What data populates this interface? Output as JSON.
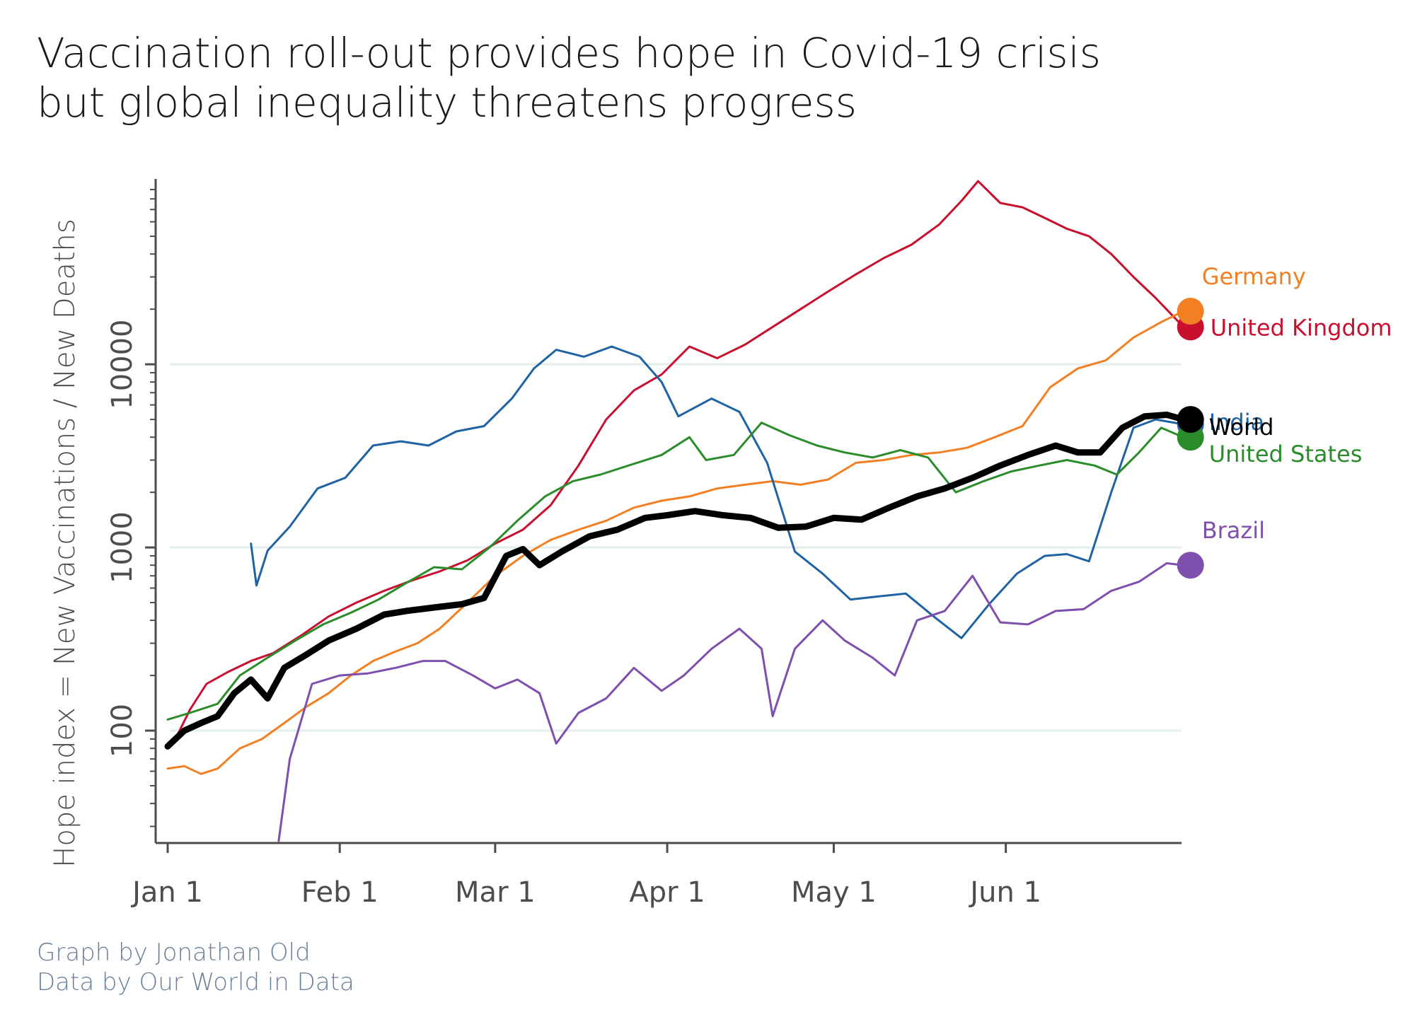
{
  "chart_data": {
    "type": "line",
    "title": [
      "Vaccination roll-out provides hope in Covid-19 crisis",
      "but global inequality threatens progress"
    ],
    "ylabel": "Hope index = New Vaccinations / New Deaths",
    "xlabel": "",
    "yscale": "log",
    "ylim": [
      25,
      90000
    ],
    "xlim": [
      "2021-01-01",
      "2021-07-01"
    ],
    "x_ticks": [
      {
        "date": "2021-01-01",
        "label": "Jan 1"
      },
      {
        "date": "2021-02-01",
        "label": "Feb 1"
      },
      {
        "date": "2021-03-01",
        "label": "Mar 1"
      },
      {
        "date": "2021-04-01",
        "label": "Apr 1"
      },
      {
        "date": "2021-05-01",
        "label": "May 1"
      },
      {
        "date": "2021-06-01",
        "label": "Jun 1"
      }
    ],
    "y_ticks": [
      {
        "value": 100,
        "label": "100"
      },
      {
        "value": 1000,
        "label": "1000"
      },
      {
        "value": 10000,
        "label": "10000"
      }
    ],
    "grid": "horizontal major lines",
    "legend": "direct labels at line ends",
    "series": [
      {
        "name": "United Kingdom",
        "color": "#c8102e",
        "end_marker": true,
        "points": [
          [
            "2021-01-02",
            85
          ],
          [
            "2021-01-05",
            130
          ],
          [
            "2021-01-08",
            180
          ],
          [
            "2021-01-12",
            210
          ],
          [
            "2021-01-16",
            240
          ],
          [
            "2021-01-20",
            265
          ],
          [
            "2021-01-25",
            330
          ],
          [
            "2021-01-30",
            420
          ],
          [
            "2021-02-04",
            500
          ],
          [
            "2021-02-09",
            580
          ],
          [
            "2021-02-14",
            660
          ],
          [
            "2021-02-19",
            740
          ],
          [
            "2021-02-24",
            850
          ],
          [
            "2021-03-01",
            1050
          ],
          [
            "2021-03-06",
            1250
          ],
          [
            "2021-03-11",
            1700
          ],
          [
            "2021-03-16",
            2800
          ],
          [
            "2021-03-21",
            5000
          ],
          [
            "2021-03-26",
            7200
          ],
          [
            "2021-03-31",
            8800
          ],
          [
            "2021-04-05",
            12500
          ],
          [
            "2021-04-10",
            10800
          ],
          [
            "2021-04-15",
            12800
          ],
          [
            "2021-04-20",
            16000
          ],
          [
            "2021-04-25",
            20000
          ],
          [
            "2021-04-30",
            25000
          ],
          [
            "2021-05-05",
            31000
          ],
          [
            "2021-05-10",
            38000
          ],
          [
            "2021-05-15",
            45000
          ],
          [
            "2021-05-20",
            58000
          ],
          [
            "2021-05-24",
            78000
          ],
          [
            "2021-05-27",
            100000
          ],
          [
            "2021-05-31",
            76000
          ],
          [
            "2021-06-04",
            72000
          ],
          [
            "2021-06-08",
            63000
          ],
          [
            "2021-06-12",
            55000
          ],
          [
            "2021-06-16",
            50000
          ],
          [
            "2021-06-20",
            40000
          ],
          [
            "2021-06-24",
            30000
          ],
          [
            "2021-06-28",
            23000
          ],
          [
            "2021-07-01",
            18500
          ],
          [
            "2021-07-03",
            16000
          ]
        ]
      },
      {
        "name": "Germany",
        "color": "#f28022",
        "end_marker": true,
        "points": [
          [
            "2021-01-01",
            62
          ],
          [
            "2021-01-04",
            64
          ],
          [
            "2021-01-07",
            58
          ],
          [
            "2021-01-10",
            62
          ],
          [
            "2021-01-14",
            80
          ],
          [
            "2021-01-18",
            90
          ],
          [
            "2021-01-22",
            110
          ],
          [
            "2021-01-26",
            135
          ],
          [
            "2021-01-30",
            160
          ],
          [
            "2021-02-03",
            200
          ],
          [
            "2021-02-07",
            240
          ],
          [
            "2021-02-11",
            270
          ],
          [
            "2021-02-15",
            300
          ],
          [
            "2021-02-19",
            360
          ],
          [
            "2021-02-24",
            500
          ],
          [
            "2021-03-01",
            700
          ],
          [
            "2021-03-06",
            900
          ],
          [
            "2021-03-11",
            1100
          ],
          [
            "2021-03-16",
            1250
          ],
          [
            "2021-03-21",
            1400
          ],
          [
            "2021-03-26",
            1650
          ],
          [
            "2021-03-31",
            1800
          ],
          [
            "2021-04-05",
            1900
          ],
          [
            "2021-04-10",
            2100
          ],
          [
            "2021-04-15",
            2200
          ],
          [
            "2021-04-20",
            2300
          ],
          [
            "2021-04-25",
            2200
          ],
          [
            "2021-04-30",
            2350
          ],
          [
            "2021-05-05",
            2900
          ],
          [
            "2021-05-10",
            3000
          ],
          [
            "2021-05-15",
            3200
          ],
          [
            "2021-05-20",
            3300
          ],
          [
            "2021-05-25",
            3500
          ],
          [
            "2021-05-30",
            4000
          ],
          [
            "2021-06-04",
            4600
          ],
          [
            "2021-06-09",
            7500
          ],
          [
            "2021-06-14",
            9500
          ],
          [
            "2021-06-19",
            10500
          ],
          [
            "2021-06-24",
            14000
          ],
          [
            "2021-06-29",
            17000
          ],
          [
            "2021-07-03",
            19500
          ]
        ]
      },
      {
        "name": "India",
        "color": "#1f63a3",
        "end_marker": true,
        "points": [
          [
            "2021-01-16",
            1050
          ],
          [
            "2021-01-17",
            620
          ],
          [
            "2021-01-19",
            960
          ],
          [
            "2021-01-23",
            1300
          ],
          [
            "2021-01-28",
            2100
          ],
          [
            "2021-02-02",
            2400
          ],
          [
            "2021-02-07",
            3600
          ],
          [
            "2021-02-12",
            3800
          ],
          [
            "2021-02-17",
            3600
          ],
          [
            "2021-02-22",
            4300
          ],
          [
            "2021-02-27",
            4600
          ],
          [
            "2021-03-04",
            6500
          ],
          [
            "2021-03-08",
            9500
          ],
          [
            "2021-03-12",
            12000
          ],
          [
            "2021-03-17",
            11000
          ],
          [
            "2021-03-22",
            12500
          ],
          [
            "2021-03-27",
            11000
          ],
          [
            "2021-03-31",
            8000
          ],
          [
            "2021-04-03",
            5200
          ],
          [
            "2021-04-09",
            6500
          ],
          [
            "2021-04-14",
            5500
          ],
          [
            "2021-04-19",
            2900
          ],
          [
            "2021-04-24",
            950
          ],
          [
            "2021-04-29",
            720
          ],
          [
            "2021-05-04",
            520
          ],
          [
            "2021-05-09",
            540
          ],
          [
            "2021-05-14",
            560
          ],
          [
            "2021-05-19",
            420
          ],
          [
            "2021-05-24",
            320
          ],
          [
            "2021-05-29",
            490
          ],
          [
            "2021-06-03",
            720
          ],
          [
            "2021-06-08",
            900
          ],
          [
            "2021-06-12",
            920
          ],
          [
            "2021-06-16",
            840
          ],
          [
            "2021-06-20",
            2000
          ],
          [
            "2021-06-24",
            4500
          ],
          [
            "2021-06-28",
            5000
          ],
          [
            "2021-07-03",
            4700
          ]
        ]
      },
      {
        "name": "United States",
        "color": "#2b8c2b",
        "end_marker": true,
        "points": [
          [
            "2021-01-01",
            115
          ],
          [
            "2021-01-05",
            125
          ],
          [
            "2021-01-10",
            140
          ],
          [
            "2021-01-14",
            200
          ],
          [
            "2021-01-19",
            250
          ],
          [
            "2021-01-24",
            310
          ],
          [
            "2021-01-29",
            380
          ],
          [
            "2021-02-03",
            440
          ],
          [
            "2021-02-08",
            520
          ],
          [
            "2021-02-13",
            640
          ],
          [
            "2021-02-18",
            780
          ],
          [
            "2021-02-23",
            760
          ],
          [
            "2021-02-28",
            1000
          ],
          [
            "2021-03-05",
            1400
          ],
          [
            "2021-03-10",
            1900
          ],
          [
            "2021-03-15",
            2300
          ],
          [
            "2021-03-20",
            2500
          ],
          [
            "2021-03-25",
            2800
          ],
          [
            "2021-03-31",
            3200
          ],
          [
            "2021-04-05",
            4000
          ],
          [
            "2021-04-08",
            3000
          ],
          [
            "2021-04-13",
            3200
          ],
          [
            "2021-04-18",
            4800
          ],
          [
            "2021-04-23",
            4100
          ],
          [
            "2021-04-28",
            3600
          ],
          [
            "2021-05-03",
            3300
          ],
          [
            "2021-05-08",
            3100
          ],
          [
            "2021-05-13",
            3400
          ],
          [
            "2021-05-18",
            3100
          ],
          [
            "2021-05-23",
            2000
          ],
          [
            "2021-05-28",
            2300
          ],
          [
            "2021-06-02",
            2600
          ],
          [
            "2021-06-07",
            2800
          ],
          [
            "2021-06-12",
            3000
          ],
          [
            "2021-06-17",
            2800
          ],
          [
            "2021-06-21",
            2500
          ],
          [
            "2021-06-25",
            3300
          ],
          [
            "2021-06-29",
            4500
          ],
          [
            "2021-07-03",
            4000
          ]
        ]
      },
      {
        "name": "Brazil",
        "color": "#7f4fad",
        "end_marker": true,
        "points": [
          [
            "2021-01-21",
            25
          ],
          [
            "2021-01-23",
            70
          ],
          [
            "2021-01-27",
            180
          ],
          [
            "2021-02-01",
            200
          ],
          [
            "2021-02-06",
            205
          ],
          [
            "2021-02-11",
            220
          ],
          [
            "2021-02-16",
            240
          ],
          [
            "2021-02-20",
            240
          ],
          [
            "2021-02-25",
            200
          ],
          [
            "2021-03-01",
            170
          ],
          [
            "2021-03-05",
            190
          ],
          [
            "2021-03-09",
            160
          ],
          [
            "2021-03-12",
            85
          ],
          [
            "2021-03-16",
            125
          ],
          [
            "2021-03-21",
            150
          ],
          [
            "2021-03-26",
            220
          ],
          [
            "2021-03-31",
            165
          ],
          [
            "2021-04-04",
            200
          ],
          [
            "2021-04-09",
            280
          ],
          [
            "2021-04-14",
            360
          ],
          [
            "2021-04-18",
            280
          ],
          [
            "2021-04-20",
            120
          ],
          [
            "2021-04-24",
            280
          ],
          [
            "2021-04-29",
            400
          ],
          [
            "2021-05-03",
            310
          ],
          [
            "2021-05-08",
            250
          ],
          [
            "2021-05-12",
            200
          ],
          [
            "2021-05-16",
            400
          ],
          [
            "2021-05-21",
            450
          ],
          [
            "2021-05-26",
            700
          ],
          [
            "2021-05-31",
            390
          ],
          [
            "2021-06-05",
            380
          ],
          [
            "2021-06-10",
            450
          ],
          [
            "2021-06-15",
            460
          ],
          [
            "2021-06-20",
            580
          ],
          [
            "2021-06-25",
            650
          ],
          [
            "2021-06-30",
            820
          ],
          [
            "2021-07-03",
            800
          ]
        ]
      },
      {
        "name": "World",
        "color": "#000000",
        "end_marker": true,
        "bold": true,
        "points": [
          [
            "2021-01-01",
            82
          ],
          [
            "2021-01-04",
            100
          ],
          [
            "2021-01-07",
            110
          ],
          [
            "2021-01-10",
            120
          ],
          [
            "2021-01-13",
            160
          ],
          [
            "2021-01-16",
            190
          ],
          [
            "2021-01-19",
            150
          ],
          [
            "2021-01-22",
            220
          ],
          [
            "2021-01-26",
            260
          ],
          [
            "2021-01-30",
            310
          ],
          [
            "2021-02-04",
            360
          ],
          [
            "2021-02-09",
            430
          ],
          [
            "2021-02-13",
            450
          ],
          [
            "2021-02-18",
            470
          ],
          [
            "2021-02-23",
            490
          ],
          [
            "2021-02-27",
            530
          ],
          [
            "2021-03-03",
            900
          ],
          [
            "2021-03-06",
            980
          ],
          [
            "2021-03-09",
            800
          ],
          [
            "2021-03-13",
            950
          ],
          [
            "2021-03-18",
            1150
          ],
          [
            "2021-03-23",
            1250
          ],
          [
            "2021-03-28",
            1450
          ],
          [
            "2021-04-01",
            1500
          ],
          [
            "2021-04-06",
            1580
          ],
          [
            "2021-04-11",
            1500
          ],
          [
            "2021-04-16",
            1450
          ],
          [
            "2021-04-21",
            1280
          ],
          [
            "2021-04-26",
            1300
          ],
          [
            "2021-05-01",
            1450
          ],
          [
            "2021-05-06",
            1420
          ],
          [
            "2021-05-11",
            1650
          ],
          [
            "2021-05-16",
            1900
          ],
          [
            "2021-05-21",
            2100
          ],
          [
            "2021-05-26",
            2400
          ],
          [
            "2021-05-31",
            2800
          ],
          [
            "2021-06-05",
            3200
          ],
          [
            "2021-06-10",
            3600
          ],
          [
            "2021-06-14",
            3300
          ],
          [
            "2021-06-18",
            3300
          ],
          [
            "2021-06-22",
            4500
          ],
          [
            "2021-06-26",
            5200
          ],
          [
            "2021-06-30",
            5300
          ],
          [
            "2021-07-03",
            5000
          ]
        ]
      }
    ],
    "end_labels": [
      {
        "series": "Germany",
        "text": "Germany"
      },
      {
        "series": "United Kingdom",
        "text": "United Kingdom"
      },
      {
        "series": "India",
        "text": "India"
      },
      {
        "series": "World",
        "text": "World"
      },
      {
        "series": "United States",
        "text": "United States"
      },
      {
        "series": "Brazil",
        "text": "Brazil"
      }
    ]
  },
  "caption": [
    "Graph by Jonathan Old",
    "Data by Our World in Data"
  ],
  "colors": {
    "axis": "#4d4d4d",
    "grid": "#e5eeee",
    "caption": "#6a7f99"
  }
}
